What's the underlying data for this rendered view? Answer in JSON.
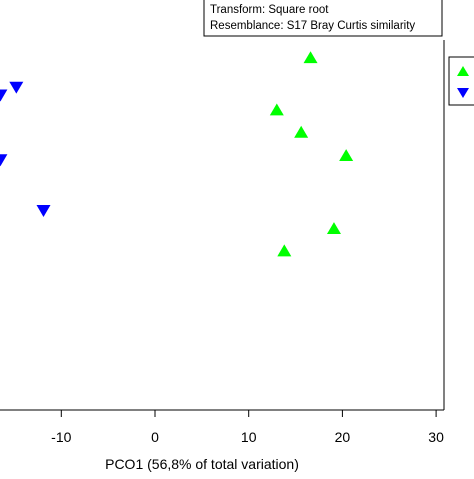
{
  "chart_data": {
    "type": "scatter",
    "info_box": [
      "Transform: Square root",
      "Resemblance: S17 Bray Curtis similarity"
    ],
    "xlabel": "PCO1 (56,8% of total variation)",
    "ylabel": "",
    "xlim": [
      -16.5,
      30.5
    ],
    "ylim": [
      -22,
      32
    ],
    "xticks": [
      -10,
      0,
      10,
      20,
      30
    ],
    "xtick_labels": [
      "-10",
      "0",
      "10",
      "20",
      "30"
    ],
    "grid": false,
    "legend_placement": "top-right (partially cropped)",
    "series": [
      {
        "marker": "triangle-up",
        "color": "#00ff00",
        "x": [
          16.6,
          13.0,
          15.6,
          20.4,
          19.1,
          13.8
        ],
        "y": [
          24.1,
          14.0,
          9.7,
          5.2,
          -8.9,
          -13.2
        ]
      },
      {
        "marker": "triangle-down",
        "color": "#0000ff",
        "x": [
          -14.8,
          -16.5,
          -16.5,
          -11.9
        ],
        "y": [
          18.2,
          16.7,
          4.2,
          -5.6
        ]
      }
    ]
  }
}
